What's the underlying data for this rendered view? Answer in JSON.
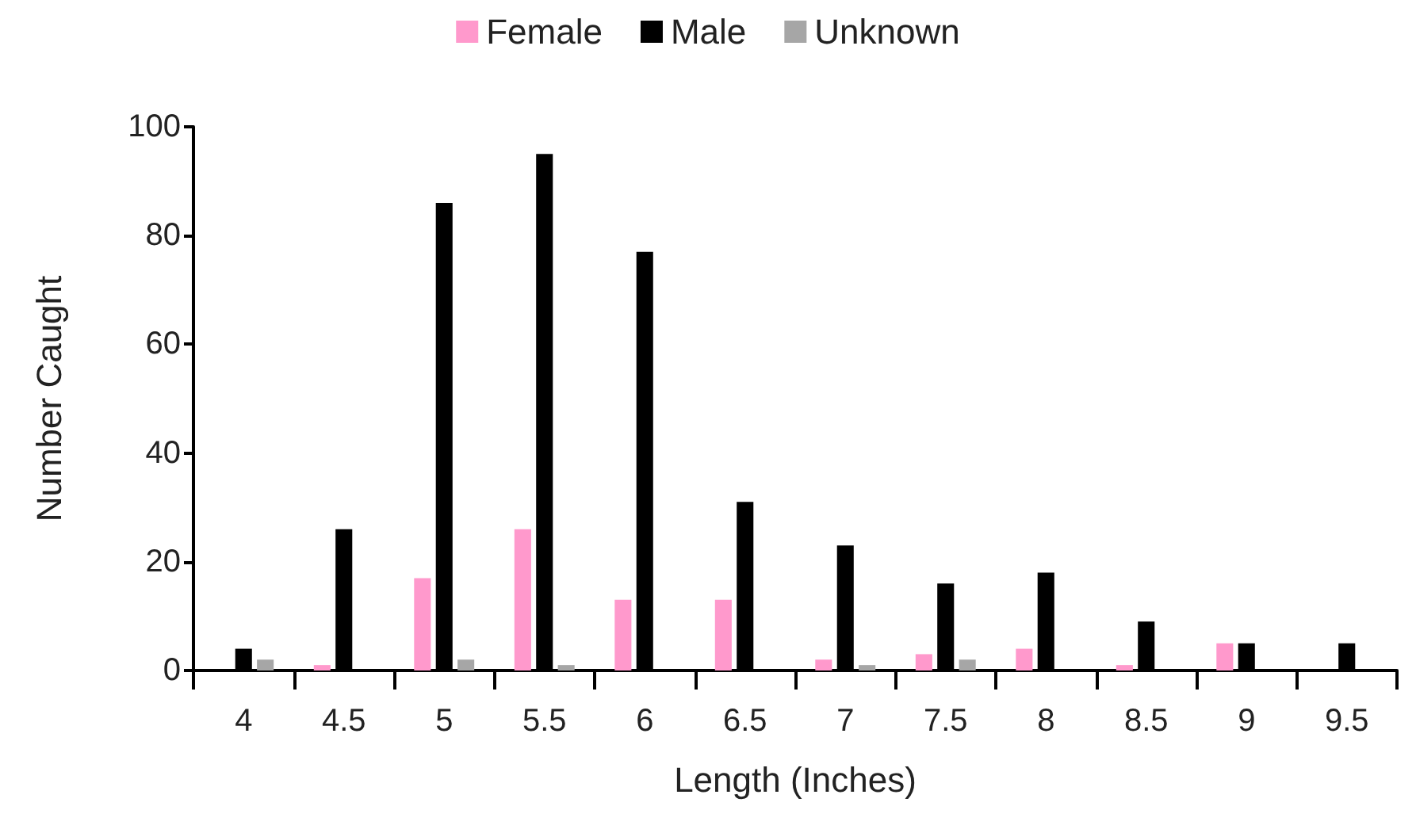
{
  "chart_data": {
    "type": "bar",
    "xlabel": "Length (Inches)",
    "ylabel": "Number Caught",
    "categories": [
      "4",
      "4.5",
      "5",
      "5.5",
      "6",
      "6.5",
      "7",
      "7.5",
      "8",
      "8.5",
      "9",
      "9.5"
    ],
    "series": [
      {
        "name": "Female",
        "color": "#ff99cc",
        "values": [
          0,
          1,
          17,
          26,
          13,
          13,
          2,
          3,
          4,
          1,
          5,
          0
        ]
      },
      {
        "name": "Male",
        "color": "#000000",
        "values": [
          4,
          26,
          86,
          95,
          77,
          31,
          23,
          16,
          18,
          9,
          5,
          5
        ]
      },
      {
        "name": "Unknown",
        "color": "#a6a6a6",
        "values": [
          2,
          0,
          2,
          1,
          0,
          0,
          1,
          2,
          0,
          0,
          0,
          0
        ]
      }
    ],
    "ylim": [
      0,
      100
    ],
    "yticks": [
      0,
      20,
      40,
      60,
      80,
      100
    ],
    "grid": false,
    "legend": "top"
  }
}
